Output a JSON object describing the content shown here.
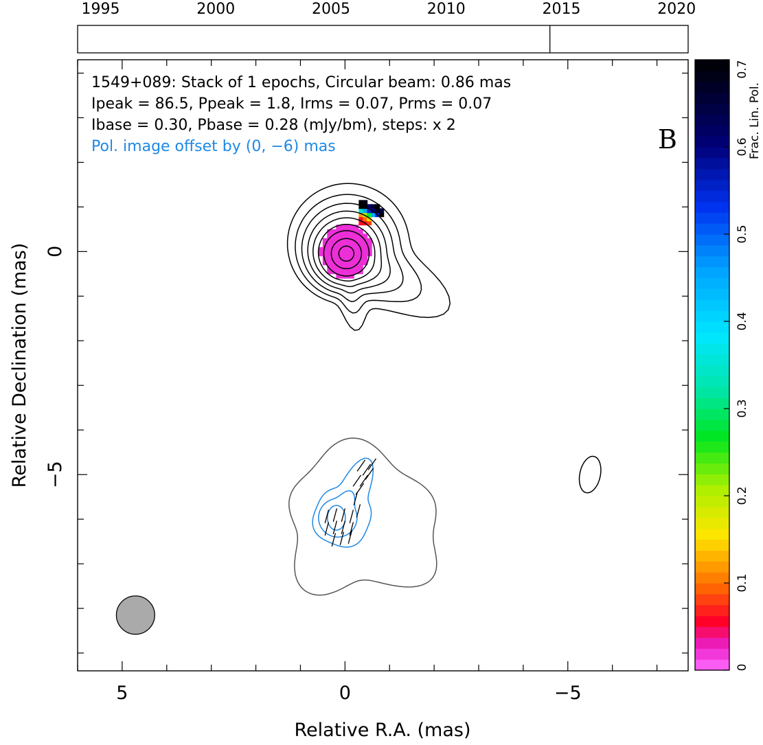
{
  "chart_data": {
    "type": "contour",
    "xlabel": "Relative R.A. (mas)",
    "ylabel": "Relative Declination (mas)",
    "xlim": [
      6,
      -7.7
    ],
    "ylim": [
      -9.4,
      4.3
    ],
    "x_ticks": [
      5,
      0,
      -5
    ],
    "x_tick_labels": [
      "5",
      "0",
      "−5"
    ],
    "y_ticks": [
      0,
      -5
    ],
    "y_tick_labels": [
      "0",
      "−5"
    ],
    "panel_label": "B",
    "annotations": [
      "1549+089: Stack of 1 epochs, Circular beam: 0.86 mas",
      "Ipeak = 86.5, Ppeak = 1.8, Irms = 0.07, Prms = 0.07",
      "Ibase = 0.30, Pbase = 0.28 (mJy/bm), steps: x 2"
    ],
    "offset_note": "Pol. image offset by (0, −6) mas",
    "offset_note_color": "#1e88e5",
    "beam": {
      "diameter_mas": 0.86,
      "center": [
        4.7,
        -8.15
      ],
      "fill": "#aaaaaa"
    },
    "stokes_i_contours": {
      "center": [
        0,
        0
      ],
      "levels_mJy": [
        0.3,
        0.6,
        1.2,
        2.4,
        4.8,
        9.6,
        19.2,
        38.4,
        76.8
      ],
      "color": "#000000"
    },
    "fractional_pol_pixels": [
      {
        "x": 0,
        "y": 0,
        "frac": 0.01
      },
      {
        "x": -0.3,
        "y": 0.6,
        "frac": 0.06
      },
      {
        "x": -0.4,
        "y": 0.8,
        "frac": 0.18
      },
      {
        "x": -0.5,
        "y": 0.9,
        "frac": 0.45
      },
      {
        "x": -0.4,
        "y": 1.1,
        "frac": 0.7
      }
    ],
    "pol_contours": {
      "center": [
        0.1,
        -6.0
      ],
      "color": "#1e88e5",
      "outer_gray_color": "#555555"
    },
    "isolated_contour": {
      "center": [
        -5.5,
        -5.0
      ]
    },
    "epoch_axis": {
      "ticks": [
        1995,
        2000,
        2005,
        2010,
        2015,
        2020
      ],
      "range": [
        1994,
        2020.5
      ],
      "epochs": [
        2014.5
      ]
    },
    "colorbar": {
      "label": "Frac. Lin. Pol.",
      "range": [
        0,
        0.7
      ],
      "ticks": [
        0,
        0.1,
        0.2,
        0.3,
        0.4,
        0.5,
        0.6,
        0.7
      ],
      "tick_labels": [
        "0",
        "0.1",
        "0.2",
        "0.3",
        "0.4",
        "0.5",
        "0.6",
        "0.7"
      ]
    }
  }
}
